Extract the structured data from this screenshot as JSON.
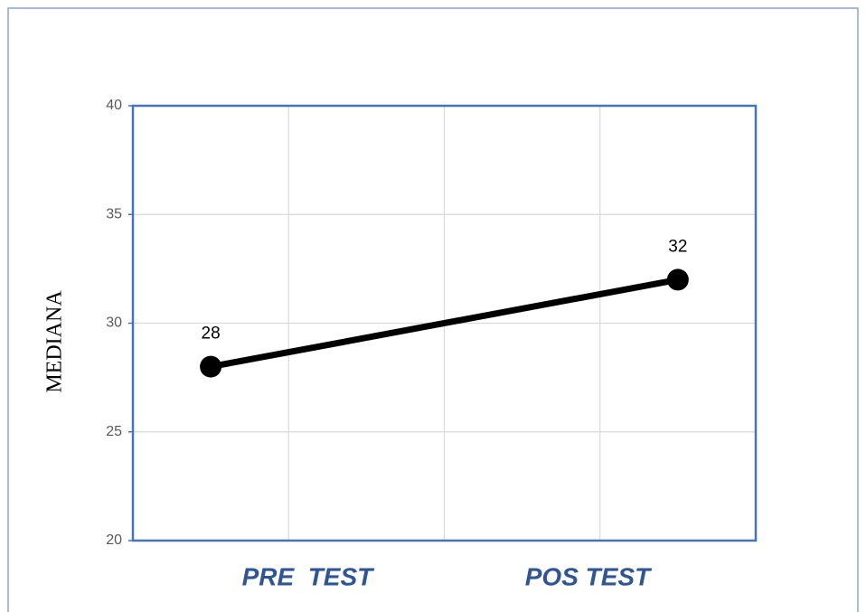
{
  "chart_data": {
    "type": "line",
    "y_label": "MEDIANA",
    "categories": [
      "PRE  TEST",
      "POS TEST"
    ],
    "series": [
      {
        "name": "MEDIANA",
        "color": "#000000",
        "values": [
          28,
          32
        ]
      }
    ],
    "ylim": [
      20,
      40
    ],
    "yticks": [
      20,
      25,
      30,
      35,
      40
    ],
    "grid": true,
    "data_labels": true
  }
}
